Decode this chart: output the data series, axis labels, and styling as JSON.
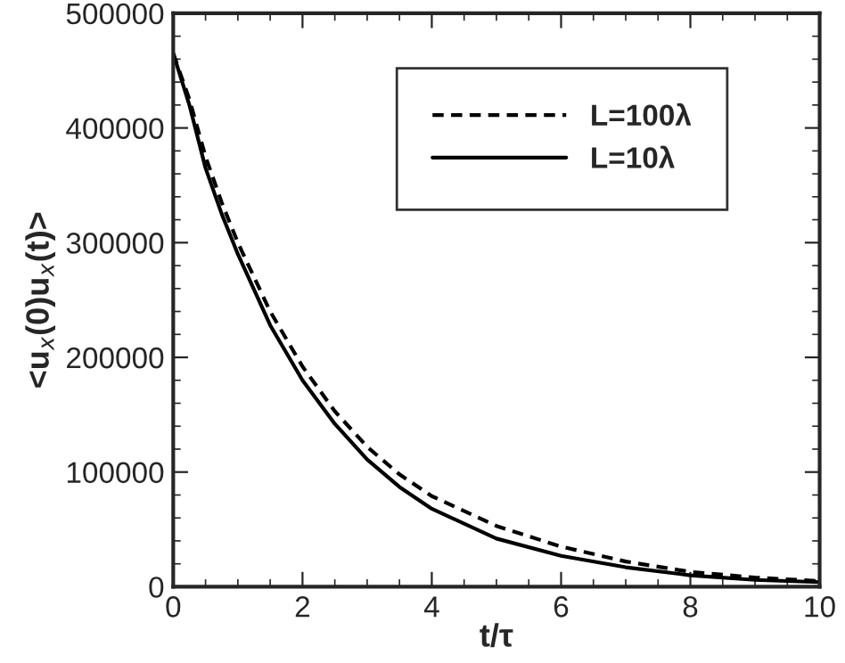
{
  "chart_data": {
    "type": "line",
    "xlabel": "t/τ",
    "ylabel": "<u$_{x}$(0)u$_{x}$(t)>",
    "x": [
      0,
      0.25,
      0.5,
      0.75,
      1,
      1.5,
      2,
      2.5,
      3,
      3.5,
      4,
      5,
      6,
      7,
      8,
      9,
      10
    ],
    "series": [
      {
        "name": "L=100λ",
        "color": "#000000",
        "line_style": "dashed",
        "values": [
          465000,
          425000,
          375000,
          335000,
          300000,
          240000,
          192000,
          153000,
          122000,
          98000,
          79000,
          53000,
          35000,
          22000,
          13000,
          8000,
          5000
        ]
      },
      {
        "name": "L=10λ",
        "color": "#000000",
        "line_style": "solid",
        "values": [
          465000,
          420000,
          365000,
          325000,
          290000,
          228000,
          180000,
          142000,
          111000,
          87000,
          68000,
          42000,
          27000,
          17000,
          10000,
          6000,
          4000
        ]
      }
    ],
    "xlim": [
      0,
      10
    ],
    "xticks": [
      0,
      2,
      4,
      6,
      8,
      10
    ],
    "ylim": [
      0,
      500000
    ],
    "yticks": [
      0,
      100000,
      200000,
      300000,
      400000,
      500000
    ],
    "grid": false,
    "legend": "top right",
    "marker": "none"
  }
}
